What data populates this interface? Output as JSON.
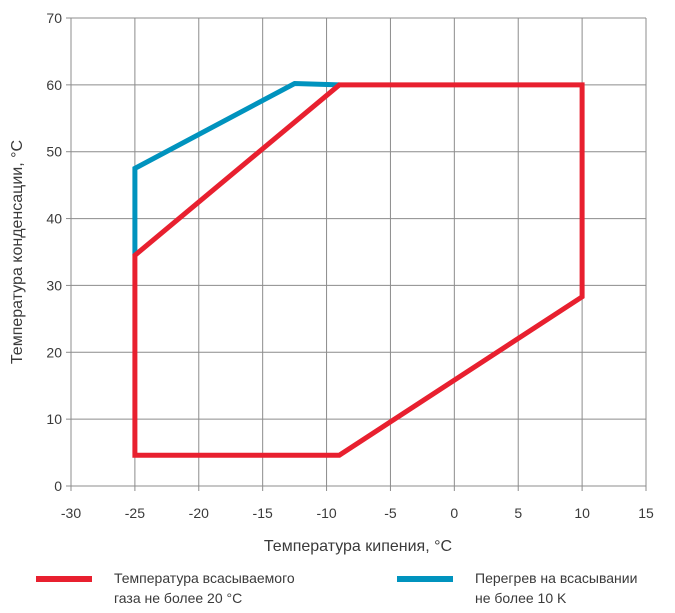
{
  "chart_data": {
    "type": "line",
    "xlabel": "Температура кипения, °C",
    "ylabel": "Температура конденсации, °C",
    "xlim": [
      -30,
      15
    ],
    "ylim": [
      0,
      70
    ],
    "xticks": [
      -30,
      -25,
      -20,
      -15,
      -10,
      -5,
      0,
      5,
      10,
      15
    ],
    "yticks": [
      0,
      10,
      20,
      30,
      40,
      50,
      60,
      70
    ],
    "grid": true,
    "legend_position": "bottom",
    "series": [
      {
        "name": "Температура всасываемого газа не более 20 °C",
        "color": "#e8202f",
        "closed": true,
        "x": [
          -25,
          -25,
          -9,
          10,
          10,
          -9,
          -25
        ],
        "y": [
          34.5,
          4.6,
          4.6,
          28.3,
          60,
          60,
          34.5
        ]
      },
      {
        "name": "Перегрев на всасывании не более 10 K",
        "color": "#0093be",
        "closed": false,
        "x": [
          -25,
          -25,
          -12.5,
          -9
        ],
        "y": [
          34.5,
          47.5,
          60.2,
          60
        ]
      }
    ]
  },
  "legend": {
    "red_line1": "Температура всасываемого",
    "red_line2": "газа не более 20 °C",
    "blue_line1": "Перегрев на всасывании",
    "blue_line2": "не более 10 K"
  }
}
